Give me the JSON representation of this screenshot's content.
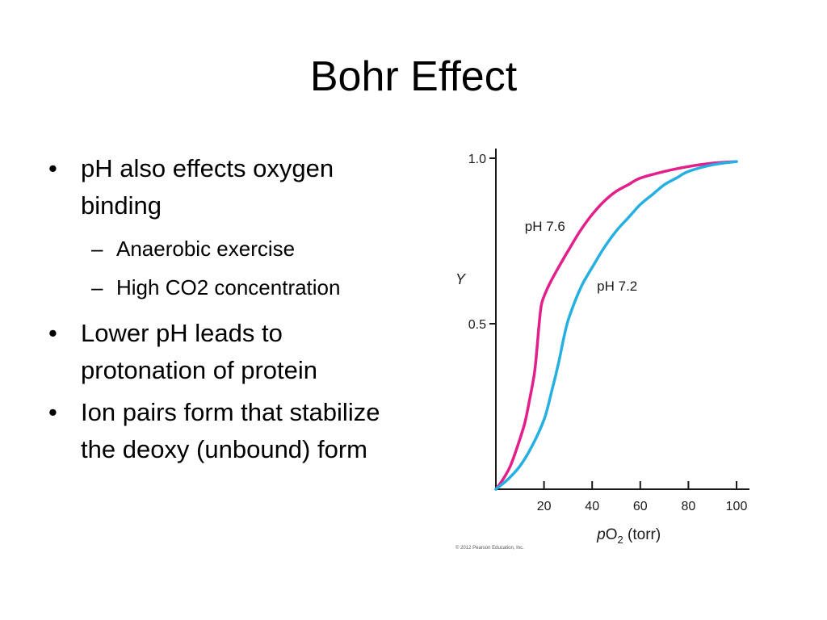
{
  "slide": {
    "title": "Bohr Effect",
    "bullets": [
      "pH also effects oxygen binding",
      "Anaerobic exercise",
      "High CO2 concentration",
      "Lower pH leads to protonation of protein",
      "Ion pairs form that stabilize the deoxy (unbound) form"
    ]
  },
  "chart_data": {
    "type": "line",
    "xlabel_prefix": "p",
    "xlabel_main": "O",
    "xlabel_sub": "2",
    "xlabel_suffix": " (torr)",
    "ylabel": "Y",
    "xlim": [
      0,
      100
    ],
    "ylim": [
      0,
      1.0
    ],
    "x_ticks": [
      20,
      40,
      60,
      80,
      100
    ],
    "x_tick_labels": [
      "20",
      "40",
      "60",
      "80",
      "100"
    ],
    "y_ticks": [
      0.5,
      1.0
    ],
    "y_tick_labels": [
      "0.5",
      "1.0"
    ],
    "grid": false,
    "series": [
      {
        "name": "pH 7.6",
        "color": "#e21f8a",
        "points": [
          [
            0,
            0
          ],
          [
            3,
            0.03
          ],
          [
            6,
            0.07
          ],
          [
            9,
            0.13
          ],
          [
            12,
            0.2
          ],
          [
            14,
            0.27
          ],
          [
            16,
            0.35
          ],
          [
            17,
            0.42
          ],
          [
            18,
            0.5
          ],
          [
            19,
            0.56
          ],
          [
            21,
            0.6
          ],
          [
            23,
            0.63
          ],
          [
            26,
            0.67
          ],
          [
            30,
            0.72
          ],
          [
            35,
            0.78
          ],
          [
            40,
            0.83
          ],
          [
            45,
            0.87
          ],
          [
            50,
            0.9
          ],
          [
            55,
            0.92
          ],
          [
            60,
            0.94
          ],
          [
            70,
            0.96
          ],
          [
            80,
            0.975
          ],
          [
            90,
            0.985
          ],
          [
            100,
            0.99
          ]
        ]
      },
      {
        "name": "pH 7.2",
        "color": "#26b0e2",
        "points": [
          [
            0,
            0
          ],
          [
            5,
            0.03
          ],
          [
            10,
            0.07
          ],
          [
            15,
            0.13
          ],
          [
            20,
            0.21
          ],
          [
            23,
            0.29
          ],
          [
            26,
            0.38
          ],
          [
            28,
            0.45
          ],
          [
            30,
            0.51
          ],
          [
            33,
            0.57
          ],
          [
            36,
            0.62
          ],
          [
            40,
            0.67
          ],
          [
            45,
            0.73
          ],
          [
            50,
            0.78
          ],
          [
            55,
            0.82
          ],
          [
            60,
            0.86
          ],
          [
            65,
            0.89
          ],
          [
            70,
            0.92
          ],
          [
            75,
            0.94
          ],
          [
            80,
            0.96
          ],
          [
            90,
            0.98
          ],
          [
            100,
            0.99
          ]
        ]
      }
    ],
    "copyright": "© 2012 Pearson Education, Inc."
  }
}
